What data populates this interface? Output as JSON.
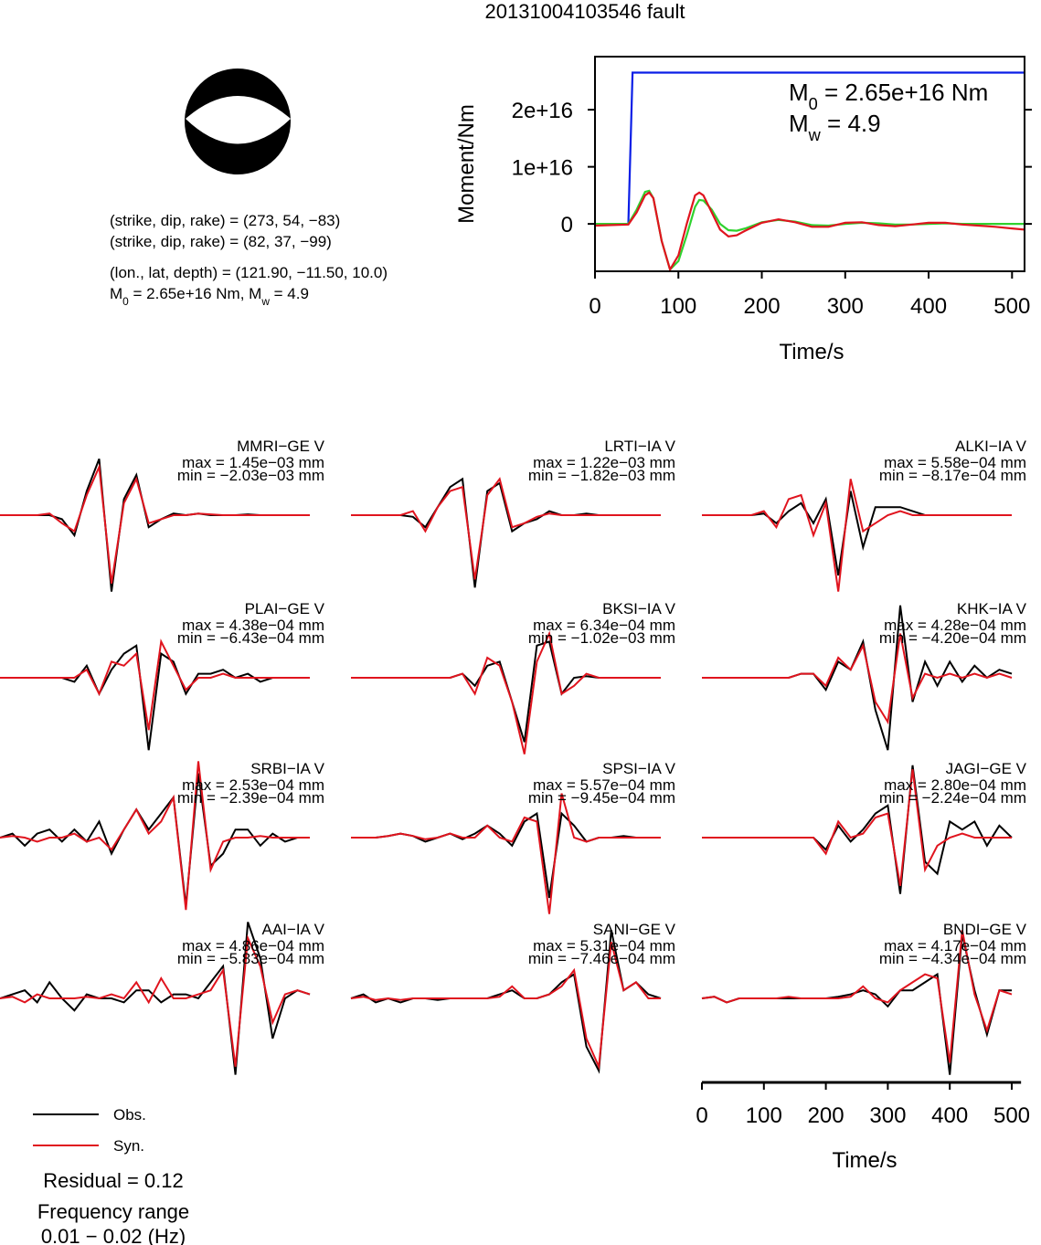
{
  "title": "20131004103546 fault",
  "mechanism": {
    "lines": [
      "(strike, dip, rake) = (273, 54, −83)",
      "(strike, dip, rake) = (82, 37, −99)",
      "(lon., lat, depth) = (121.90, −11.50, 10.0)"
    ],
    "moment_line": [
      "M",
      "0",
      " = 2.65e+16 Nm, M",
      "w",
      " = 4.9"
    ]
  },
  "chart_data": [
    {
      "type": "line",
      "ylabel": "Moment/Nm",
      "xlabel": "Time/s",
      "xlim": [
        0,
        515
      ],
      "xticks": [
        0,
        100,
        200,
        300,
        400,
        500
      ],
      "ylim": [
        -8300000000000000.0,
        2.93e+16
      ],
      "yticks": [
        {
          "value": 0,
          "label": "0"
        },
        {
          "value": 1e+16,
          "label": "1e+16"
        },
        {
          "value": 2e+16,
          "label": "2e+16"
        }
      ],
      "annotations": [
        [
          "M",
          "0",
          " = 2.65e+16 Nm"
        ],
        [
          "M",
          "w",
          " = 4.9"
        ]
      ],
      "series": [
        {
          "color": "#0a1ee6",
          "x": [
            0,
            40,
            45,
            515
          ],
          "values": [
            0,
            0,
            2.65e+16,
            2.65e+16
          ]
        },
        {
          "color": "#2fd22f",
          "x": [
            0,
            40,
            50,
            60,
            65,
            70,
            80,
            90,
            100,
            110,
            120,
            125,
            130,
            140,
            150,
            160,
            170,
            180,
            200,
            220,
            240,
            260,
            280,
            300,
            320,
            340,
            360,
            380,
            400,
            420,
            440,
            460,
            480,
            500,
            515
          ],
          "values": [
            0,
            0,
            2500000000000000.0,
            5600000000000000.0,
            5800000000000000.0,
            4500000000000000.0,
            -3000000000000000.0,
            -8000000000000000.0,
            -6500000000000000.0,
            -2000000000000000.0,
            3000000000000000.0,
            4200000000000000.0,
            4100000000000000.0,
            2500000000000000.0,
            0,
            -1100000000000000.0,
            -1200000000000000.0,
            -800000000000000.0,
            300000000000000.0,
            700000000000000.0,
            400000000000000.0,
            -200000000000000.0,
            -300000000000000.0,
            0,
            200000000000000.0,
            100000000000000.0,
            -100000000000000.0,
            -100000000000000.0,
            0,
            100000000000000.0,
            0,
            0,
            0,
            0,
            0
          ]
        },
        {
          "color": "#e0141e",
          "x": [
            0,
            40,
            50,
            60,
            65,
            70,
            80,
            90,
            100,
            110,
            120,
            125,
            130,
            140,
            150,
            160,
            170,
            180,
            200,
            220,
            240,
            260,
            280,
            300,
            320,
            340,
            360,
            380,
            400,
            420,
            440,
            460,
            480,
            500,
            515
          ],
          "values": [
            -300000000000000.0,
            -100000000000000.0,
            2000000000000000.0,
            5000000000000000.0,
            5500000000000000.0,
            4500000000000000.0,
            -3000000000000000.0,
            -8000000000000000.0,
            -5500000000000000.0,
            0,
            5000000000000000.0,
            5500000000000000.0,
            5000000000000000.0,
            2000000000000000.0,
            -1000000000000000.0,
            -2200000000000000.0,
            -2000000000000000.0,
            -1200000000000000.0,
            200000000000000.0,
            800000000000000.0,
            300000000000000.0,
            -500000000000000.0,
            -500000000000000.0,
            200000000000000.0,
            300000000000000.0,
            -200000000000000.0,
            -400000000000000.0,
            -100000000000000.0,
            200000000000000.0,
            200000000000000.0,
            -100000000000000.0,
            -300000000000000.0,
            -500000000000000.0,
            -800000000000000.0,
            -1000000000000000.0
          ]
        }
      ]
    },
    {
      "type": "waveform",
      "xlabel": "Time/s",
      "xlim": [
        0,
        515
      ],
      "xticks": [
        0,
        100,
        200,
        300,
        400,
        500
      ],
      "time": [
        0,
        20,
        40,
        60,
        80,
        100,
        120,
        140,
        160,
        180,
        200,
        220,
        240,
        260,
        280,
        300,
        320,
        340,
        360,
        380,
        400,
        420,
        440,
        460,
        480,
        500
      ],
      "legend": [
        {
          "name": "Obs.",
          "color": "#000000"
        },
        {
          "name": "Syn.",
          "color": "#e0141e"
        }
      ],
      "residual": "Residual = 0.12",
      "frequency": [
        "Frequency range",
        "0.01 − 0.02 (Hz)"
      ],
      "stations": [
        {
          "name": "MMRI−GE V",
          "max": "max = 1.45e−03 mm",
          "min": "min = −2.03e−03 mm",
          "obs": [
            0,
            0,
            0,
            0,
            0,
            -0.05,
            -0.25,
            0.3,
            0.7,
            -0.95,
            0.2,
            0.5,
            -0.15,
            -0.05,
            0.02,
            0,
            0.02,
            0,
            0,
            0,
            0.01,
            0,
            0,
            0,
            0,
            0
          ],
          "syn": [
            0,
            0,
            0,
            0,
            0.02,
            -0.1,
            -0.2,
            0.25,
            0.6,
            -0.85,
            0.15,
            0.45,
            -0.1,
            -0.05,
            0,
            0,
            0.02,
            0.01,
            0,
            0,
            0,
            0,
            0,
            0,
            0,
            0
          ]
        },
        {
          "name": "LRTI−IA V",
          "max": "max = 1.22e−03 mm",
          "min": "min = −1.82e−03 mm",
          "obs": [
            0,
            0,
            0,
            0,
            0,
            -0.02,
            -0.15,
            0.1,
            0.35,
            0.45,
            -0.9,
            0.3,
            0.4,
            -0.2,
            -0.1,
            -0.05,
            0.05,
            0,
            0,
            0.02,
            0,
            0,
            0,
            0,
            0,
            0
          ],
          "syn": [
            0,
            0,
            0,
            0,
            0,
            0.05,
            -0.2,
            0.1,
            0.3,
            0.35,
            -0.8,
            0.25,
            0.45,
            -0.15,
            -0.1,
            -0.02,
            0.02,
            0,
            0,
            0,
            0,
            0,
            0,
            0,
            0,
            0
          ]
        },
        {
          "name": "ALKI−IA V",
          "max": "max = 5.58e−04 mm",
          "min": "min = −8.17e−04 mm",
          "obs": [
            0,
            0,
            0,
            0,
            0,
            0.02,
            -0.1,
            0.05,
            0.15,
            -0.1,
            0.2,
            -0.75,
            0.3,
            -0.4,
            0.1,
            0.1,
            0.1,
            0.05,
            0,
            0,
            0,
            0,
            0,
            0,
            0,
            0
          ],
          "syn": [
            0,
            0,
            0,
            0,
            0,
            0.05,
            -0.15,
            0.2,
            0.25,
            -0.25,
            0.15,
            -0.95,
            0.45,
            -0.2,
            -0.1,
            0,
            0.05,
            0,
            0,
            0,
            0,
            0,
            0,
            0,
            0,
            0
          ]
        },
        {
          "name": "PLAI−GE V",
          "max": "max = 4.38e−04 mm",
          "min": "min = −6.43e−04 mm",
          "obs": [
            0,
            0,
            0,
            0,
            0,
            0,
            -0.05,
            0.15,
            -0.2,
            0.1,
            0.3,
            0.4,
            -0.9,
            0.3,
            0.2,
            -0.2,
            0.05,
            0.05,
            0.1,
            0,
            0.05,
            -0.05,
            0,
            0,
            0,
            0
          ],
          "syn": [
            0,
            0,
            0,
            0,
            0,
            0,
            0,
            0.1,
            -0.2,
            0.2,
            0.15,
            0.3,
            -0.65,
            0.45,
            0.15,
            -0.15,
            0,
            0,
            0.05,
            0,
            0,
            0,
            0,
            0,
            0,
            0
          ]
        },
        {
          "name": "BKSI−IA V",
          "max": "max = 6.34e−04 mm",
          "min": "min = −1.02e−03 mm",
          "obs": [
            0,
            0,
            0,
            0,
            0,
            0,
            0,
            0,
            0,
            0.05,
            -0.1,
            0.15,
            0.2,
            -0.3,
            -0.8,
            0.4,
            0.45,
            -0.2,
            0,
            0.02,
            0,
            0,
            0,
            0,
            0,
            0
          ],
          "syn": [
            0,
            0,
            0,
            0,
            0,
            0,
            0,
            0,
            0,
            0.05,
            -0.2,
            0.25,
            0.15,
            -0.3,
            -0.95,
            0.2,
            0.55,
            -0.2,
            -0.1,
            0.05,
            0,
            0,
            0,
            0,
            0,
            0
          ]
        },
        {
          "name": "KHK−IA V",
          "max": "max = 4.28e−04 mm",
          "min": "min = −4.20e−04 mm",
          "obs": [
            0,
            0,
            0,
            0,
            0,
            0,
            0,
            0,
            0.05,
            0.05,
            -0.15,
            0.2,
            0.1,
            0.45,
            -0.4,
            -0.9,
            0.9,
            -0.3,
            0.2,
            -0.1,
            0.2,
            -0.05,
            0.15,
            0,
            0.1,
            0.05
          ],
          "syn": [
            0,
            0,
            0,
            0,
            0,
            0,
            0,
            0,
            0.05,
            0.05,
            -0.1,
            0.25,
            0.1,
            0.4,
            -0.3,
            -0.55,
            0.55,
            -0.25,
            0.05,
            0,
            0.05,
            0,
            0.05,
            0,
            0.05,
            0
          ]
        },
        {
          "name": "SRBI−IA V",
          "max": "max = 2.53e−04 mm",
          "min": "min = −2.39e−04 mm",
          "obs": [
            0,
            0.05,
            -0.1,
            0.05,
            0.1,
            -0.05,
            0.1,
            -0.05,
            0.2,
            -0.2,
            0.1,
            0.35,
            0.1,
            0.3,
            0.5,
            -0.85,
            0.8,
            -0.35,
            -0.2,
            0.1,
            0.1,
            -0.1,
            0.05,
            -0.05,
            0,
            0
          ],
          "syn": [
            0,
            0.02,
            0,
            -0.05,
            0,
            0,
            0.05,
            -0.05,
            0,
            -0.15,
            0.1,
            0.35,
            0.05,
            0.2,
            0.5,
            -0.9,
            0.95,
            -0.4,
            -0.05,
            0,
            0,
            0.02,
            0,
            0,
            0,
            0
          ]
        },
        {
          "name": "SPSI−IA V",
          "max": "max = 5.57e−04 mm",
          "min": "min = −9.45e−04 mm",
          "obs": [
            0,
            0,
            0,
            0.02,
            0.05,
            0.02,
            -0.05,
            0,
            0.05,
            -0.02,
            0.05,
            0.15,
            0.05,
            -0.1,
            0.2,
            0.3,
            -0.75,
            0.3,
            0.15,
            -0.05,
            0,
            0,
            0.02,
            0,
            0,
            0
          ],
          "syn": [
            0,
            0,
            0,
            0.02,
            0.05,
            0.02,
            -0.02,
            0,
            0.05,
            0,
            0,
            0.15,
            0,
            -0.05,
            0.25,
            0.2,
            -0.95,
            0.55,
            0,
            -0.05,
            0,
            0,
            0,
            0,
            0,
            0
          ]
        },
        {
          "name": "JAGI−GE V",
          "max": "max = 2.80e−04 mm",
          "min": "min = −2.24e−04 mm",
          "obs": [
            0,
            0,
            0,
            0,
            0,
            0,
            0,
            0,
            0,
            0,
            -0.15,
            0.15,
            -0.05,
            0.1,
            0.3,
            0.4,
            -0.7,
            0.9,
            -0.3,
            -0.45,
            0.2,
            0.1,
            0.2,
            -0.1,
            0.15,
            0
          ],
          "syn": [
            0,
            0,
            0,
            0,
            0,
            0,
            0,
            0,
            0,
            0,
            -0.2,
            0.2,
            0,
            0.05,
            0.25,
            0.3,
            -0.6,
            0.85,
            -0.4,
            -0.1,
            0,
            0.05,
            0,
            0,
            0,
            0
          ]
        },
        {
          "name": "AAI−IA V",
          "max": "max = 4.86e−04 mm",
          "min": "min = −5.83e−04 mm",
          "obs": [
            0,
            0.05,
            0.1,
            -0.05,
            0.2,
            0,
            -0.15,
            0.05,
            0,
            0,
            -0.05,
            0.1,
            0.1,
            -0.05,
            0.05,
            0.05,
            0,
            0.2,
            0.4,
            -0.95,
            0.95,
            0.5,
            -0.5,
            0,
            0.1,
            0.05
          ],
          "syn": [
            0,
            0.02,
            -0.05,
            0.05,
            0,
            0,
            0,
            0.02,
            0,
            0.05,
            0,
            0.2,
            -0.05,
            0.25,
            0,
            0,
            0.05,
            0.1,
            0.35,
            -0.85,
            0.75,
            0.4,
            -0.3,
            0.05,
            0.1,
            0.05
          ]
        },
        {
          "name": "SANI−GE V",
          "max": "max = 5.31e−04 mm",
          "min": "min = −7.46e−04 mm",
          "obs": [
            0,
            0.05,
            -0.05,
            0,
            -0.05,
            0,
            0,
            -0.02,
            0,
            0,
            0,
            0,
            0.05,
            0.1,
            0,
            0,
            0.05,
            0.2,
            0.3,
            -0.6,
            -0.9,
            0.85,
            0.1,
            0.2,
            0.05,
            0
          ],
          "syn": [
            0,
            0.02,
            -0.02,
            0,
            -0.02,
            0,
            0,
            0,
            0,
            0,
            0,
            0,
            0.02,
            0.15,
            0,
            0,
            0.05,
            0.15,
            0.35,
            -0.5,
            -0.85,
            0.7,
            0.1,
            0.2,
            0,
            0
          ]
        },
        {
          "name": "BNDI−GE V",
          "max": "max = 4.17e−04 mm",
          "min": "min = −4.34e−04 mm",
          "obs": [
            0,
            0.02,
            -0.05,
            0,
            0,
            0,
            0,
            0,
            0,
            0,
            0,
            0.02,
            0.05,
            0.1,
            0.05,
            -0.1,
            0.1,
            0.1,
            0.2,
            0.3,
            -0.95,
            0.8,
            0.1,
            -0.45,
            0.1,
            0.1
          ],
          "syn": [
            0,
            0.02,
            -0.05,
            0,
            0,
            0,
            0,
            0.02,
            0,
            0,
            0,
            0,
            0.02,
            0.15,
            0,
            -0.05,
            0.1,
            0.2,
            0.3,
            0.25,
            -0.8,
            0.85,
            0.05,
            -0.4,
            0.1,
            0.05
          ]
        }
      ]
    }
  ]
}
